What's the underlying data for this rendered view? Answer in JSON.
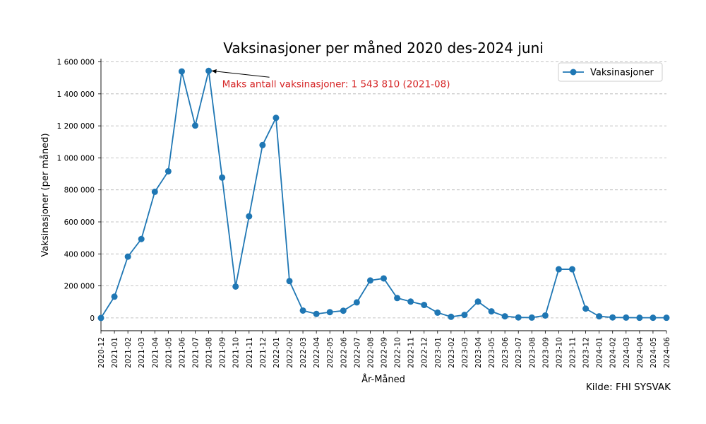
{
  "chart_data": {
    "type": "line",
    "title": "Vaksinasjoner per måned 2020 des-2024 juni",
    "xlabel": "År-Måned",
    "ylabel": "Vaksinasjoner (per måned)",
    "ylim": [
      -80000,
      1620000
    ],
    "yticks": [
      0,
      200000,
      400000,
      600000,
      800000,
      1000000,
      1200000,
      1400000,
      1600000
    ],
    "ytick_labels": [
      "0",
      "200 000",
      "400 000",
      "600 000",
      "800 000",
      "1 000 000",
      "1 200 000",
      "1 400 000",
      "1 600 000"
    ],
    "grid": "y-dashed",
    "legend_placement": "top-right",
    "series_color": "#1f77b4",
    "annotation_color": "#d62728",
    "categories": [
      "2020-12",
      "2021-01",
      "2021-02",
      "2021-03",
      "2021-04",
      "2021-05",
      "2021-06",
      "2021-07",
      "2021-08",
      "2021-09",
      "2021-10",
      "2021-11",
      "2021-12",
      "2022-01",
      "2022-02",
      "2022-03",
      "2022-04",
      "2022-05",
      "2022-06",
      "2022-07",
      "2022-08",
      "2022-09",
      "2022-10",
      "2022-11",
      "2022-12",
      "2023-01",
      "2023-02",
      "2023-03",
      "2023-04",
      "2023-05",
      "2023-06",
      "2023-07",
      "2023-08",
      "2023-09",
      "2023-10",
      "2023-11",
      "2023-12",
      "2024-01",
      "2024-02",
      "2024-03",
      "2024-04",
      "2024-05",
      "2024-06"
    ],
    "series": [
      {
        "name": "Vaksinasjoner",
        "values": [
          0,
          133000,
          383000,
          493000,
          788000,
          916000,
          1540000,
          1202000,
          1543810,
          877000,
          196000,
          635000,
          1080000,
          1250000,
          230000,
          46000,
          25000,
          36000,
          45000,
          97000,
          234000,
          247000,
          124000,
          102000,
          81000,
          33000,
          7000,
          19000,
          102000,
          41000,
          10000,
          3000,
          2000,
          15000,
          304000,
          304000,
          58000,
          10000,
          3000,
          2000,
          1000,
          1000,
          1000
        ]
      }
    ],
    "annotation": {
      "text": "Maks antall vaksinasjoner: 1 543 810 (2021-08)",
      "target_category": "2021-08",
      "target_value": 1543810
    },
    "source": "Kilde: FHI SYSVAK"
  }
}
